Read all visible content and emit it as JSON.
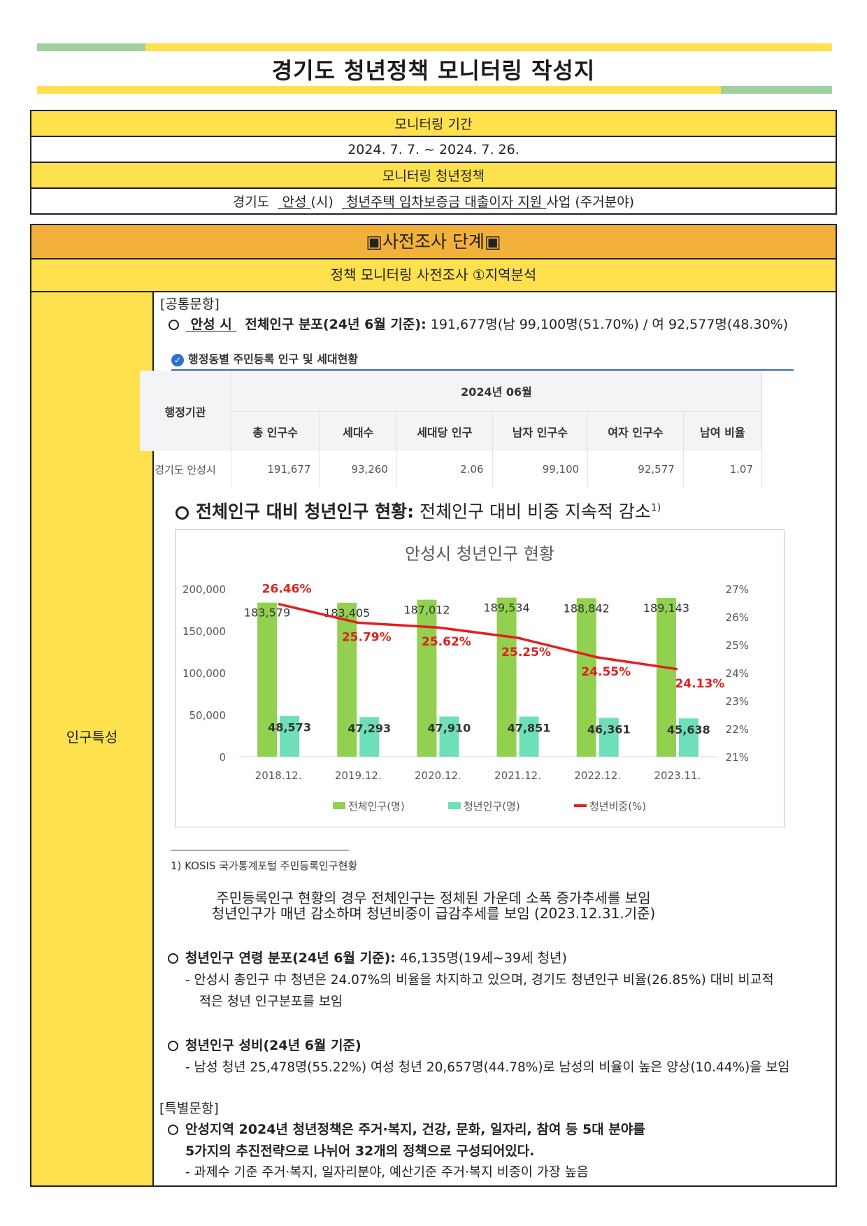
{
  "title": "경기도 청년정책 모니터링 작성지",
  "colors": {
    "green_band": "#9fd0a0",
    "yellow_band": "#ffe14d",
    "orange_header": "#f2b13a"
  },
  "header": {
    "period_label": "모니터링 기간",
    "period_value": "2024. 7. 7. ~ 2024. 7. 26.",
    "policy_label": "모니터링 청년정책",
    "policy_prefix": "경기도",
    "policy_city": "안성",
    "policy_city_unit": "(시)",
    "policy_name": "청년주택 임차보증금 대출이자 지원",
    "policy_suffix": "사업 (주거분야)"
  },
  "stage": {
    "title": "▣사전조사 단계▣",
    "subtitle": "정책 모니터링 사전조사 ①지역분석"
  },
  "left_label": "인구특성",
  "common": {
    "heading": "[공통문항]",
    "item1_city": "안성 시",
    "item1_label": "전체인구 분포(24년 6월 기준):",
    "item1_value": "191,677명(남 99,100명(51.70%) / 여 92,577명(48.30%)"
  },
  "pop_table": {
    "caption": "행정동별 주민등록 인구 및 세대현황",
    "col_group": "행정기관",
    "period": "2024년 06월",
    "headers": [
      "총 인구수",
      "세대수",
      "세대당 인구",
      "남자 인구수",
      "여자 인구수",
      "남여 비율"
    ],
    "row_name": "경기도 안성시",
    "row_values": [
      "191,677",
      "93,260",
      "2.06",
      "99,100",
      "92,577",
      "1.07"
    ]
  },
  "section2": {
    "label": "전체인구 대비 청년인구 현황:",
    "text": "전체인구 대비 비중 지속적 감소",
    "footnote_mark": "1)"
  },
  "chart_data": {
    "type": "bar",
    "title": "안성시 청년인구 현황",
    "categories": [
      "2018.12.",
      "2019.12.",
      "2020.12.",
      "2021.12.",
      "2022.12.",
      "2023.11."
    ],
    "series": [
      {
        "name": "전체인구(명)",
        "type": "bar",
        "axis": "left",
        "color": "#92d050",
        "values": [
          183579,
          183405,
          187012,
          189534,
          188842,
          189143
        ],
        "labels": [
          "183,579",
          "183,405",
          "187,012",
          "189,534",
          "188,842",
          "189,143"
        ]
      },
      {
        "name": "청년인구(명)",
        "type": "bar",
        "axis": "left",
        "color": "#6ee0b8",
        "values": [
          48573,
          47293,
          47910,
          47851,
          46361,
          45638
        ],
        "labels": [
          "48,573",
          "47,293",
          "47,910",
          "47,851",
          "46,361",
          "45,638"
        ]
      },
      {
        "name": "청년비중(%)",
        "type": "line",
        "axis": "right",
        "color": "#e02020",
        "values": [
          26.46,
          25.79,
          25.62,
          25.25,
          24.55,
          24.13
        ],
        "labels": [
          "26.46%",
          "25.79%",
          "25.62%",
          "25.25%",
          "24.55%",
          "24.13%"
        ]
      }
    ],
    "ylim": [
      0,
      200000
    ],
    "yticks": [
      "200,000",
      "150,000",
      "100,000",
      "50,000",
      "0"
    ],
    "y2lim": [
      21,
      27
    ],
    "y2ticks": [
      "27%",
      "26%",
      "25%",
      "24%",
      "23%",
      "22%",
      "21%"
    ],
    "legend": "bottom",
    "grid": false
  },
  "footnote": "1) KOSIS 국가통계포털 주민등록인구현황",
  "summary_1": "주민등록인구 현황의 경우 전체인구는 정체된 가운데 소폭 증가추세를 보임",
  "summary_2": "청년인구가 매년 감소하며 청년비중이 급감추세를 보임 (2023.12.31.기준)",
  "item3": {
    "label": "청년인구 연령 분포(24년 6월 기준):",
    "value": "46,135명(19세~39세 청년)",
    "detail_1": "- 안성시 총인구 中 청년은 24.07%의 비율을 차지하고 있으며, 경기도 청년인구 비율(26.85%) 대비 비교적",
    "detail_2": "적은 청년 인구분포를 보임"
  },
  "item4": {
    "label": "청년인구 성비(24년 6월 기준)",
    "detail": "- 남성 청년 25,478명(55.22%) 여성 청년 20,657명(44.78%)로 남성의 비율이 높은 양상(10.44%)을 보임"
  },
  "special": {
    "heading": "[특별문항]",
    "line1": "안성지역 2024년 청년정책은 주거·복지, 건강, 문화, 일자리, 참여 등 5대 분야를",
    "line2": "5가지의 추진전략으로 나뉘어 32개의 정책으로 구성되어있다.",
    "line3": "- 과제수 기준 주거·복지, 일자리분야, 예산기준 주거·복지 비중이 가장 높음"
  }
}
